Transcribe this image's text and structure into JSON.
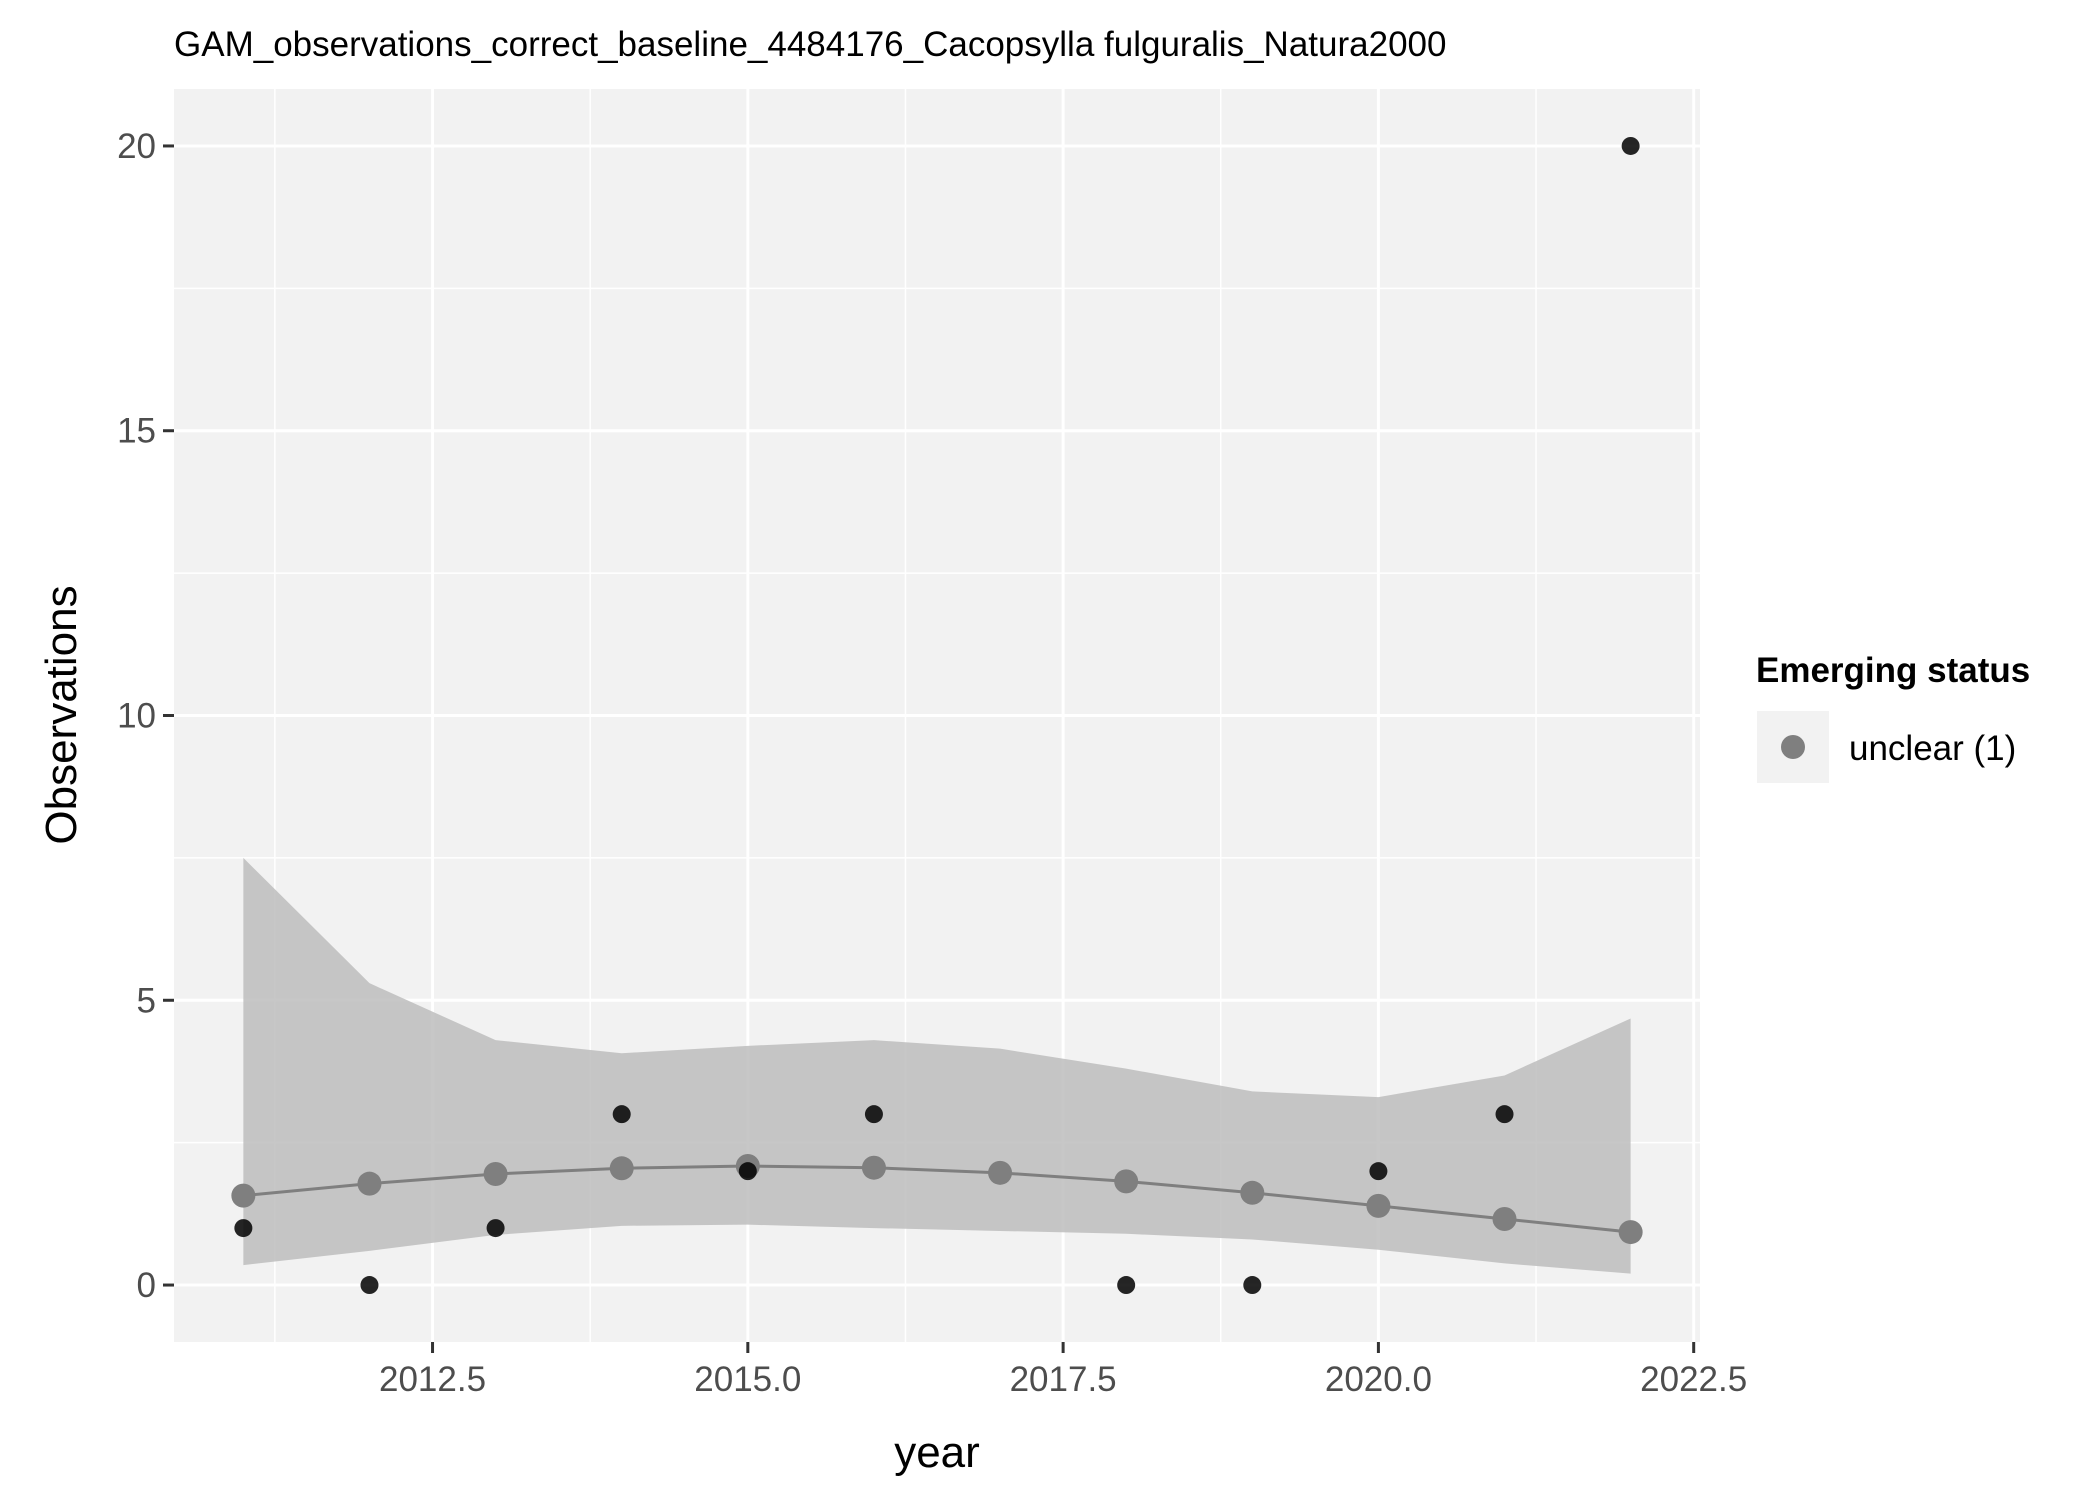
{
  "chart_data": {
    "type": "scatter",
    "title": "GAM_observations_correct_baseline_4484176_Cacopsylla fulguralis_Natura2000",
    "xlabel": "year",
    "ylabel": "Observations",
    "xlim": [
      2010.45,
      2022.55
    ],
    "ylim": [
      -1,
      21
    ],
    "x_ticks": [
      2012.5,
      2015.0,
      2017.5,
      2020.0,
      2022.5
    ],
    "x_tick_labels": [
      "2012.5",
      "2015.0",
      "2017.5",
      "2020.0",
      "2022.5"
    ],
    "y_ticks": [
      0,
      5,
      10,
      15,
      20
    ],
    "y_tick_labels": [
      "0",
      "5",
      "10",
      "15",
      "20"
    ],
    "grid": true,
    "legend_placement": "right",
    "legend": {
      "title": "Emerging status",
      "entries": [
        {
          "label": "unclear (1)",
          "color": "#7f7f7f"
        }
      ]
    },
    "series": [
      {
        "kind": "observed_points",
        "color": "#000000",
        "points": [
          {
            "x": 2011,
            "y": 1
          },
          {
            "x": 2012,
            "y": 0
          },
          {
            "x": 2013,
            "y": 1
          },
          {
            "x": 2014,
            "y": 3
          },
          {
            "x": 2015,
            "y": 2
          },
          {
            "x": 2016,
            "y": 3
          },
          {
            "x": 2018,
            "y": 0
          },
          {
            "x": 2019,
            "y": 0
          },
          {
            "x": 2020,
            "y": 2
          },
          {
            "x": 2021,
            "y": 3
          },
          {
            "x": 2022,
            "y": 20
          }
        ]
      },
      {
        "name": "unclear (1)",
        "kind": "gam_fit",
        "color": "#7f7f7f",
        "ribbon_color": "#bdbdbd",
        "points": [
          {
            "x": 2011,
            "y": 1.57,
            "lower": 0.35,
            "upper": 7.5
          },
          {
            "x": 2012,
            "y": 1.78,
            "lower": 0.6,
            "upper": 5.3
          },
          {
            "x": 2013,
            "y": 1.95,
            "lower": 0.88,
            "upper": 4.3
          },
          {
            "x": 2014,
            "y": 2.05,
            "lower": 1.04,
            "upper": 4.07
          },
          {
            "x": 2015,
            "y": 2.09,
            "lower": 1.06,
            "upper": 4.2
          },
          {
            "x": 2016,
            "y": 2.06,
            "lower": 1.0,
            "upper": 4.3
          },
          {
            "x": 2017,
            "y": 1.97,
            "lower": 0.95,
            "upper": 4.15
          },
          {
            "x": 2018,
            "y": 1.82,
            "lower": 0.9,
            "upper": 3.8
          },
          {
            "x": 2019,
            "y": 1.62,
            "lower": 0.8,
            "upper": 3.4
          },
          {
            "x": 2020,
            "y": 1.39,
            "lower": 0.62,
            "upper": 3.3
          },
          {
            "x": 2021,
            "y": 1.16,
            "lower": 0.38,
            "upper": 3.68
          },
          {
            "x": 2022,
            "y": 0.93,
            "lower": 0.2,
            "upper": 4.68
          }
        ]
      }
    ]
  }
}
